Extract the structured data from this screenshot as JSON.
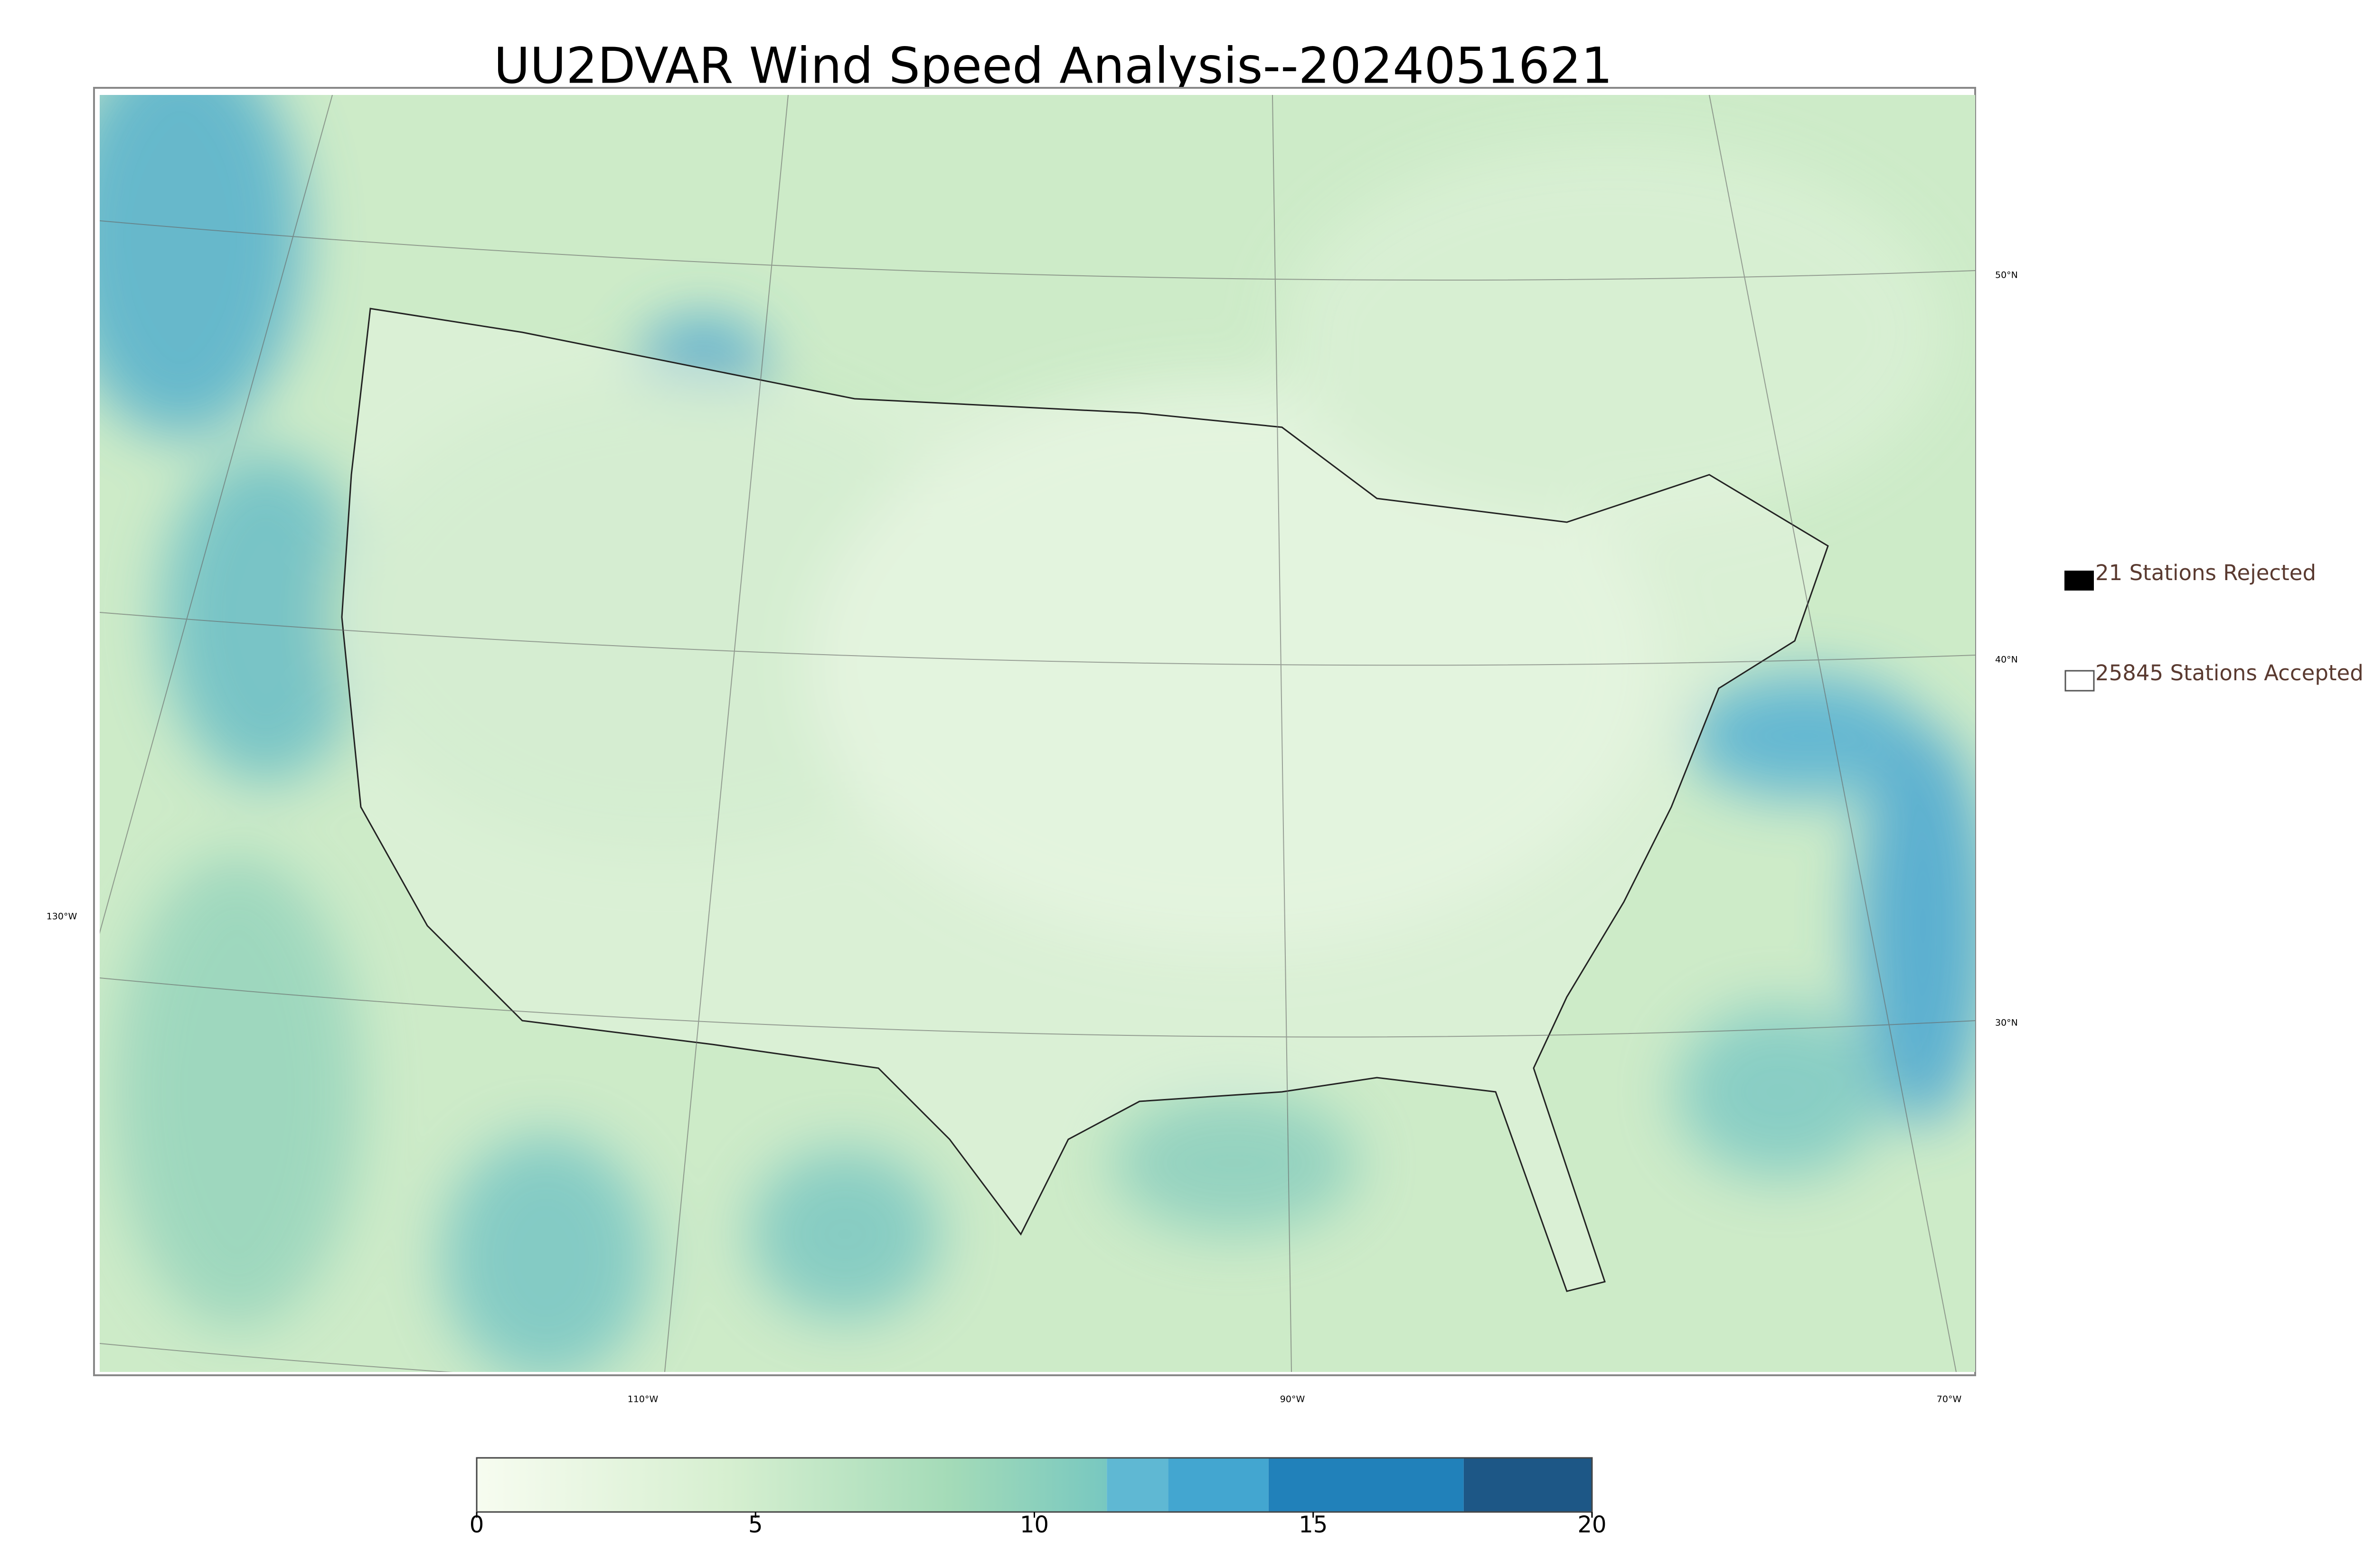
{
  "title": "UU2DVAR Wind Speed Analysis--2024051621",
  "legend": {
    "rejected": "21 Stations Rejected",
    "accepted": "25845 Stations Accepted"
  },
  "lat_labels": [
    "50°N",
    "40°N",
    "30°N"
  ],
  "lon_labels": [
    "130°W",
    "110°W",
    "90°W",
    "70°W"
  ],
  "colorbar": {
    "lim": [
      0,
      20
    ],
    "ticks": [
      0,
      5,
      10,
      15,
      20
    ],
    "gradient": {
      "from": 0,
      "to": 11.3
    },
    "steps": [
      {
        "from": 11.3,
        "to": 12.4,
        "color": "#5fb8d3"
      },
      {
        "from": 12.4,
        "to": 14.2,
        "color": "#43a6d0"
      },
      {
        "from": 14.2,
        "to": 17.7,
        "color": "#2181ba"
      },
      {
        "from": 17.7,
        "to": 20,
        "color": "#1d5786"
      }
    ]
  }
}
